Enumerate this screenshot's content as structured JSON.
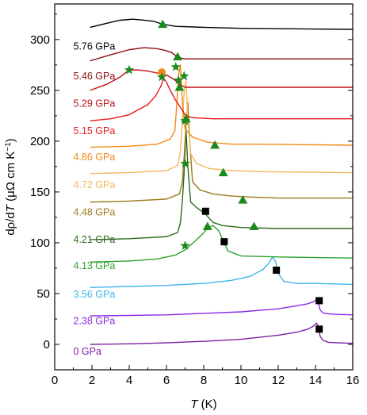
{
  "chart_data": {
    "type": "line",
    "title": "",
    "xlabel_parts": [
      "T",
      " (K)"
    ],
    "ylabel_parts": [
      "dρ/d",
      "T",
      " (μΩ cm K",
      "−1",
      ")"
    ],
    "xlim": [
      0,
      16
    ],
    "ylim": [
      -25,
      335
    ],
    "xticks": [
      0,
      2,
      4,
      6,
      8,
      10,
      12,
      14,
      16
    ],
    "yticks": [
      0,
      50,
      100,
      150,
      200,
      250,
      300
    ],
    "xtick_labels": [
      "0",
      "2",
      "4",
      "6",
      "8",
      "10",
      "12",
      "14",
      "16"
    ],
    "ytick_labels": [
      "0",
      "50",
      "100",
      "150",
      "200",
      "250",
      "300"
    ],
    "grid": false,
    "series": [
      {
        "name": "0 GPa",
        "color": "#7d1fa0",
        "label_pos": [
          1.0,
          -10
        ],
        "x": [
          1.9,
          4,
          6,
          8,
          10,
          12,
          13,
          13.6,
          13.9,
          14.05,
          14.15,
          14.25,
          14.4,
          14.7,
          15.2,
          16
        ],
        "y": [
          0,
          0.5,
          1.5,
          3,
          5,
          9,
          12,
          15,
          18,
          21,
          18,
          8,
          4,
          2,
          1.5,
          1
        ],
        "markers": [
          {
            "shape": "square",
            "x": 14.2,
            "y": 15
          }
        ]
      },
      {
        "name": "2.38 GPa",
        "color": "#8a2be2",
        "label_pos": [
          1.0,
          20
        ],
        "x": [
          1.9,
          4,
          6,
          8,
          10,
          12,
          13,
          13.6,
          13.9,
          14.05,
          14.15,
          14.25,
          14.4,
          14.7,
          15.2,
          16
        ],
        "y": [
          28,
          28.5,
          29,
          30.5,
          32,
          35,
          38,
          40,
          42,
          44,
          41,
          34,
          31,
          30,
          29.5,
          29
        ],
        "markers": [
          {
            "shape": "square",
            "x": 14.2,
            "y": 43
          }
        ]
      },
      {
        "name": "3.56 GPa",
        "color": "#3fb4ec",
        "label_pos": [
          1.0,
          46
        ],
        "x": [
          1.9,
          4,
          6,
          8,
          9.5,
          10.5,
          11.2,
          11.5,
          11.7,
          11.85,
          12.0,
          12.3,
          13,
          14,
          16
        ],
        "y": [
          56,
          57,
          58,
          60,
          63,
          67,
          74,
          80,
          86,
          82,
          70,
          62,
          60,
          60,
          59
        ],
        "markers": [
          {
            "shape": "square",
            "x": 11.9,
            "y": 73
          }
        ]
      },
      {
        "name": "4.13 GPa",
        "color": "#2ea12e",
        "label_pos": [
          1.0,
          74
        ],
        "x": [
          1.9,
          4,
          5.5,
          6.5,
          7,
          7.5,
          7.9,
          8.2,
          8.5,
          8.8,
          9.0,
          9.3,
          10,
          12,
          16
        ],
        "y": [
          81,
          82,
          84,
          88,
          93,
          101,
          108,
          114,
          117,
          112,
          104,
          92,
          87,
          86,
          85
        ],
        "markers": [
          {
            "shape": "star",
            "x": 7.0,
            "y": 97
          },
          {
            "shape": "triangle",
            "x": 8.2,
            "y": 116
          },
          {
            "shape": "square",
            "x": 9.1,
            "y": 101
          }
        ]
      },
      {
        "name": "4.21 GPa",
        "color": "#2e6b1f",
        "label_pos": [
          1.0,
          100
        ],
        "x": [
          1.9,
          4,
          6,
          6.6,
          6.75,
          6.85,
          6.95,
          7.05,
          7.15,
          7.3,
          7.6,
          8.1,
          8.5,
          9,
          10,
          12,
          16
        ],
        "y": [
          103,
          104,
          106,
          110,
          120,
          140,
          170,
          212,
          175,
          140,
          135,
          128,
          120,
          117,
          115,
          114,
          114
        ],
        "markers": [
          {
            "shape": "star",
            "x": 7.0,
            "y": 220
          },
          {
            "shape": "square",
            "x": 8.1,
            "y": 131
          },
          {
            "shape": "triangle",
            "x": 10.7,
            "y": 116
          }
        ]
      },
      {
        "name": "4.48 GPa",
        "color": "#9e7a1e",
        "label_pos": [
          1.0,
          127
        ],
        "x": [
          1.9,
          4,
          6,
          6.7,
          6.85,
          6.95,
          7.05,
          7.15,
          7.25,
          7.4,
          7.8,
          8.5,
          9.5,
          10.5,
          12,
          16
        ],
        "y": [
          140,
          141,
          143,
          148,
          160,
          185,
          215,
          238,
          200,
          160,
          152,
          148,
          146,
          145,
          144,
          144
        ],
        "markers": [
          {
            "shape": "star",
            "x": 7.0,
            "y": 178
          },
          {
            "shape": "triangle",
            "x": 10.1,
            "y": 142
          }
        ]
      },
      {
        "name": "4.72 GPa",
        "color": "#f5b95e",
        "label_pos": [
          1.0,
          154
        ],
        "x": [
          1.9,
          4,
          6,
          6.6,
          6.75,
          6.85,
          6.95,
          7.05,
          7.15,
          7.3,
          7.6,
          8.3,
          9.5,
          11,
          16
        ],
        "y": [
          168,
          169,
          171,
          176,
          190,
          218,
          248,
          260,
          222,
          188,
          178,
          173,
          171,
          170,
          169
        ],
        "markers": [
          {
            "shape": "star",
            "x": 6.95,
            "y": 264
          },
          {
            "shape": "triangle",
            "x": 9.05,
            "y": 169
          }
        ]
      },
      {
        "name": "4.86 GPa",
        "color": "#f18a16",
        "label_pos": [
          1.0,
          181
        ],
        "x": [
          1.9,
          4,
          5.5,
          6.2,
          6.45,
          6.55,
          6.65,
          6.75,
          6.85,
          7.0,
          7.4,
          8.2,
          9.5,
          11,
          16
        ],
        "y": [
          194,
          195,
          197,
          202,
          210,
          235,
          265,
          275,
          240,
          212,
          204,
          199,
          197,
          197,
          196
        ],
        "markers": [
          {
            "shape": "circle",
            "x": 5.75,
            "y": 268
          },
          {
            "shape": "star",
            "x": 6.65,
            "y": 260
          },
          {
            "shape": "triangle",
            "x": 8.6,
            "y": 196
          }
        ]
      },
      {
        "name": "5.15 GPa",
        "color": "#e8181c",
        "label_pos": [
          1.0,
          207
        ],
        "x": [
          1.9,
          3,
          4,
          5,
          5.4,
          5.7,
          5.85,
          6.0,
          6.2,
          6.5,
          6.8,
          7.0,
          7.2,
          7.5,
          8.5,
          10,
          16
        ],
        "y": [
          220,
          222,
          226,
          236,
          244,
          254,
          262,
          258,
          250,
          240,
          232,
          226,
          224,
          223,
          222,
          222,
          222
        ],
        "markers": [
          {
            "shape": "star",
            "x": 5.75,
            "y": 263
          },
          {
            "shape": "triangle",
            "x": 7.05,
            "y": 222
          }
        ]
      },
      {
        "name": "5.29 GPa",
        "color": "#c01017",
        "label_pos": [
          1.0,
          234
        ],
        "x": [
          1.9,
          2.8,
          3.5,
          4.0,
          4.5,
          5.0,
          5.5,
          6.0,
          6.3,
          6.6,
          6.8,
          7.0,
          7.5,
          8.5,
          10,
          16
        ],
        "y": [
          250,
          256,
          263,
          270,
          270,
          269,
          267,
          265,
          262,
          258,
          255,
          253,
          253,
          253,
          253,
          253
        ],
        "markers": [
          {
            "shape": "star",
            "x": 4.0,
            "y": 270
          },
          {
            "shape": "star",
            "x": 6.5,
            "y": 273
          },
          {
            "shape": "triangle",
            "x": 6.7,
            "y": 253
          }
        ]
      },
      {
        "name": "5.46 GPa",
        "color": "#8e0e10",
        "label_pos": [
          1.0,
          261
        ],
        "x": [
          1.9,
          3,
          4,
          4.8,
          5.5,
          6.0,
          6.3,
          6.5,
          6.7,
          7.0,
          8,
          10,
          16
        ],
        "y": [
          279,
          285,
          290,
          292,
          291,
          289,
          287,
          284,
          282,
          281,
          281,
          281,
          281
        ],
        "markers": [
          {
            "shape": "triangle",
            "x": 6.6,
            "y": 283
          }
        ]
      },
      {
        "name": "5.76 GPa",
        "color": "#000000",
        "label_pos": [
          1.0,
          290
        ],
        "x": [
          1.9,
          2.8,
          3.5,
          4.2,
          4.8,
          5.3,
          5.8,
          6.5,
          8,
          10,
          16
        ],
        "y": [
          312,
          316,
          319,
          320,
          319,
          318,
          315,
          313,
          312,
          311,
          310
        ],
        "markers": [
          {
            "shape": "triangle",
            "x": 5.8,
            "y": 315
          }
        ]
      }
    ]
  }
}
